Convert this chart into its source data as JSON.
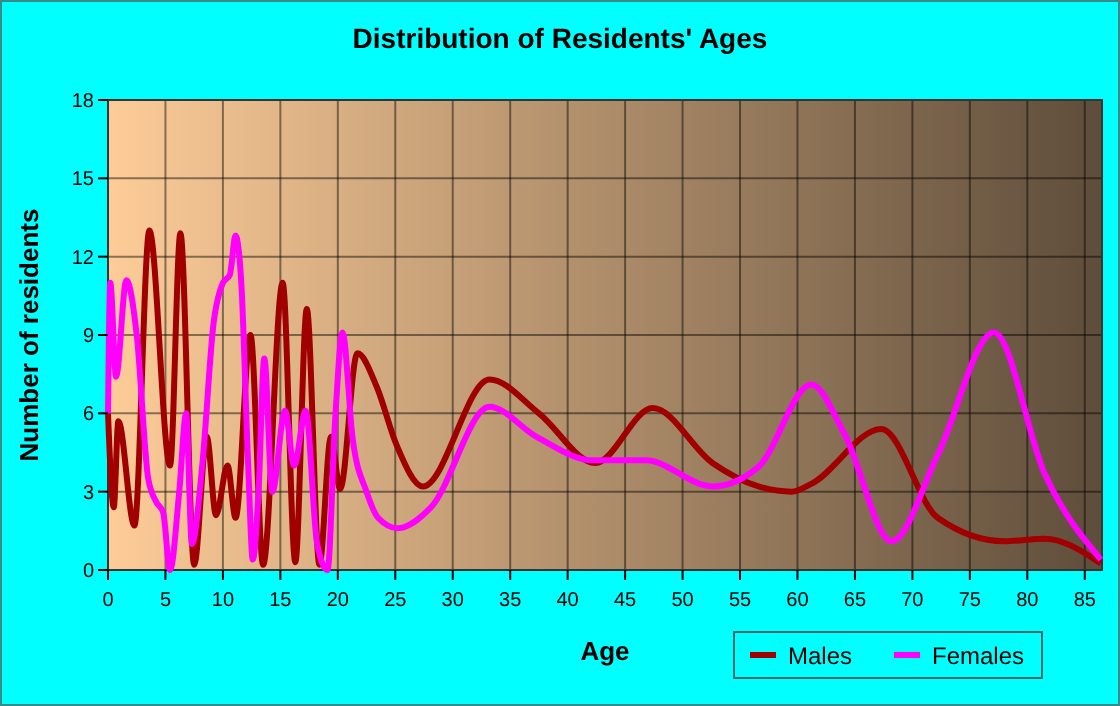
{
  "chart_data": {
    "type": "line",
    "title": "Distribution of Residents' Ages",
    "xlabel": "Age",
    "ylabel": "Number of residents",
    "xlim": [
      0,
      86.5
    ],
    "xticks": [
      0,
      5,
      10,
      15,
      20,
      25,
      30,
      35,
      40,
      45,
      50,
      55,
      60,
      65,
      70,
      75,
      80,
      85
    ],
    "ylim": [
      0,
      18
    ],
    "yticks": [
      0,
      3,
      6,
      9,
      12,
      15,
      18
    ],
    "grid": true,
    "legend": "bottom right",
    "series": [
      {
        "name": "Males",
        "color": "#a00000",
        "x": [
          0,
          0.5,
          0.9,
          2.3,
          3.6,
          5.4,
          6.3,
          7.5,
          8.6,
          9.4,
          10.4,
          11.1,
          12.4,
          13.5,
          15.2,
          16.3,
          17.3,
          18.4,
          19.4,
          20.2,
          21.7,
          23.4,
          25.1,
          27.4,
          33.2,
          37.5,
          42.4,
          47.4,
          52.6,
          56.6,
          59.5,
          61.2,
          67.3,
          72.2,
          78,
          81.5,
          86.4
        ],
        "values": [
          6,
          2.4,
          5.7,
          1.7,
          13,
          4,
          12.9,
          0.2,
          5.1,
          2.1,
          4,
          2,
          9,
          0.2,
          11,
          0.3,
          10,
          0.2,
          5.1,
          3.1,
          8.3,
          7,
          4.8,
          3.2,
          7.3,
          6,
          4.1,
          6.2,
          4.1,
          3.2,
          3,
          3.3,
          5.4,
          2,
          1.1,
          1.2,
          0.25
        ]
      },
      {
        "name": "Females",
        "color": "#ff00ff",
        "x": [
          0,
          0.2,
          0.7,
          1.6,
          2.5,
          3.5,
          4.2,
          4.8,
          5.4,
          6.2,
          6.8,
          7.3,
          8.2,
          9.2,
          10,
          10.6,
          11.1,
          11.6,
          12.2,
          12.6,
          13.1,
          13.6,
          14.3,
          15.4,
          16.2,
          17.2,
          18.2,
          19.1,
          19.8,
          20.4,
          21.3,
          22.5,
          23.5,
          25.2,
          28.1,
          33.2,
          37.3,
          42.2,
          46.8,
          52.6,
          56.6,
          61.2,
          64.1,
          68.2,
          72.2,
          77.1,
          81.5,
          86.4
        ],
        "values": [
          6,
          11,
          7.4,
          11.1,
          9,
          3.5,
          2.6,
          2.2,
          0,
          3,
          6,
          1,
          4,
          9.5,
          11,
          11.3,
          12.8,
          11,
          4,
          0.4,
          3,
          8.1,
          3,
          6.1,
          4,
          6.1,
          1,
          0,
          6,
          9.1,
          5,
          3,
          2,
          1.6,
          2.4,
          6.25,
          5.1,
          4.2,
          4.2,
          3.2,
          3.95,
          7.1,
          5.2,
          1.1,
          4.4,
          9.1,
          3.7,
          0.4
        ]
      }
    ]
  }
}
